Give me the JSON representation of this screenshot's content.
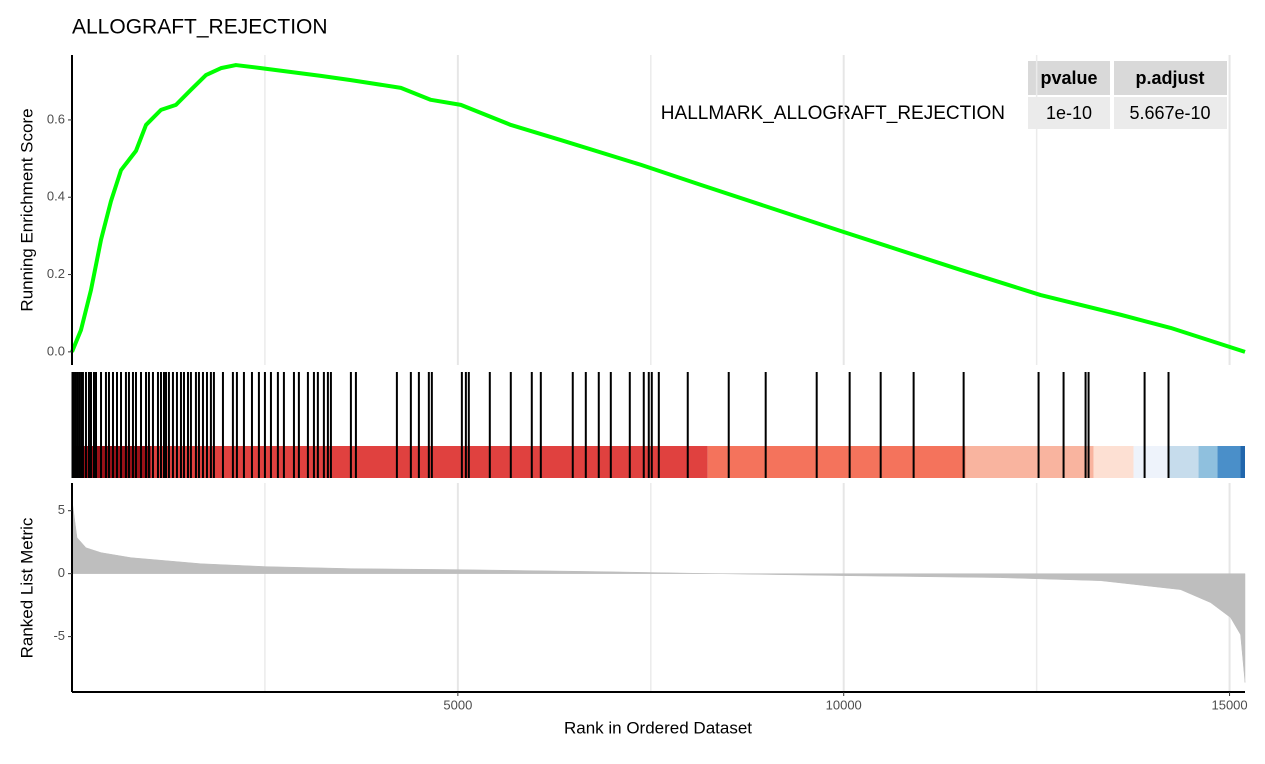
{
  "chart_data": {
    "type": "gsea",
    "title": "ALLOGRAFT_REJECTION",
    "ylabel": "Running Enrichment Score",
    "y2label": "Ranked List Metric",
    "xlabel": "Rank in Ordered Dataset",
    "annotation": "HALLMARK_ALLOGRAFT_REJECTION",
    "table": {
      "header": [
        "pvalue",
        "p.adjust"
      ],
      "rows": [
        [
          "1e-10",
          "5.667e-10"
        ]
      ]
    },
    "xlim": [
      0,
      15200
    ],
    "xticks": [
      5000,
      10000,
      15000
    ],
    "xminor": [
      2500,
      7500,
      12500
    ],
    "ylim": [
      -0.034,
      0.768
    ],
    "yticks": [
      {
        "value": 0,
        "label": "0.0"
      },
      0.2,
      0.4,
      0.6
    ],
    "y2lim": [
      -9.4,
      7.2
    ],
    "y2ticks": [
      5,
      0,
      -5
    ],
    "grid": true,
    "running_es": {
      "color": "#00ff00",
      "x": [
        0,
        117,
        246,
        376,
        505,
        635,
        829,
        959,
        1153,
        1347,
        1541,
        1736,
        1930,
        2124,
        2448,
        2837,
        3225,
        3614,
        4262,
        4650,
        5039,
        5687,
        6334,
        7370,
        8148,
        10000,
        11516,
        12552,
        13588,
        14236,
        15200
      ],
      "values": [
        0,
        0.057,
        0.16,
        0.29,
        0.39,
        0.47,
        0.52,
        0.587,
        0.626,
        0.639,
        0.678,
        0.716,
        0.734,
        0.742,
        0.734,
        0.724,
        0.714,
        0.703,
        0.683,
        0.652,
        0.639,
        0.587,
        0.548,
        0.484,
        0.432,
        0.31,
        0.212,
        0.147,
        0.096,
        0.062,
        0
      ]
    },
    "hits": [
      13,
      39,
      65,
      91,
      117,
      142,
      181,
      220,
      246,
      285,
      311,
      376,
      440,
      479,
      531,
      583,
      635,
      699,
      738,
      790,
      829,
      894,
      959,
      997,
      1049,
      1114,
      1153,
      1192,
      1218,
      1256,
      1308,
      1360,
      1412,
      1451,
      1503,
      1541,
      1606,
      1645,
      1697,
      1749,
      1800,
      1839,
      1956,
      2085,
      2137,
      2228,
      2332,
      2422,
      2500,
      2578,
      2668,
      2746,
      2876,
      2940,
      3057,
      3135,
      3186,
      3264,
      3316,
      3355,
      3614,
      3679,
      4210,
      4391,
      4495,
      4624,
      4663,
      5052,
      5104,
      5142,
      5414,
      5686,
      5958,
      6075,
      6489,
      6658,
      6826,
      6982,
      7228,
      7409,
      7474,
      7513,
      7604,
      7979,
      8510,
      8989,
      9650,
      10077,
      10479,
      10906,
      11554,
      12525,
      12849,
      13134,
      13173,
      13899,
      14209
    ],
    "hit_color": "#000000",
    "color_bar": [
      {
        "start": 0,
        "end": 1023,
        "color": "#9b1118"
      },
      {
        "start": 1023,
        "end": 8238,
        "color": "#e0413f"
      },
      {
        "start": 8238,
        "end": 11580,
        "color": "#f4735c"
      },
      {
        "start": 11580,
        "end": 13238,
        "color": "#f9b49f"
      },
      {
        "start": 13238,
        "end": 13756,
        "color": "#fde0d3"
      },
      {
        "start": 13756,
        "end": 14209,
        "color": "#eef3fb"
      },
      {
        "start": 14209,
        "end": 14598,
        "color": "#c6dcec"
      },
      {
        "start": 14598,
        "end": 14844,
        "color": "#8fc0de"
      },
      {
        "start": 14844,
        "end": 15142,
        "color": "#4a8fc9"
      },
      {
        "start": 15142,
        "end": 15200,
        "color": "#2166ac"
      }
    ],
    "metric": {
      "color": "#bebebe",
      "x": [
        0,
        65,
        181,
        376,
        764,
        1671,
        2513,
        3614,
        5000,
        6852,
        8342,
        10000,
        12034,
        13329,
        14365,
        14754,
        15013,
        15142,
        15200
      ],
      "values": [
        5.9,
        2.86,
        2.06,
        1.67,
        1.27,
        0.79,
        0.56,
        0.4,
        0.32,
        0.16,
        0,
        -0.16,
        -0.32,
        -0.56,
        -1.27,
        -2.3,
        -3.49,
        -4.84,
        -8.65
      ]
    }
  }
}
